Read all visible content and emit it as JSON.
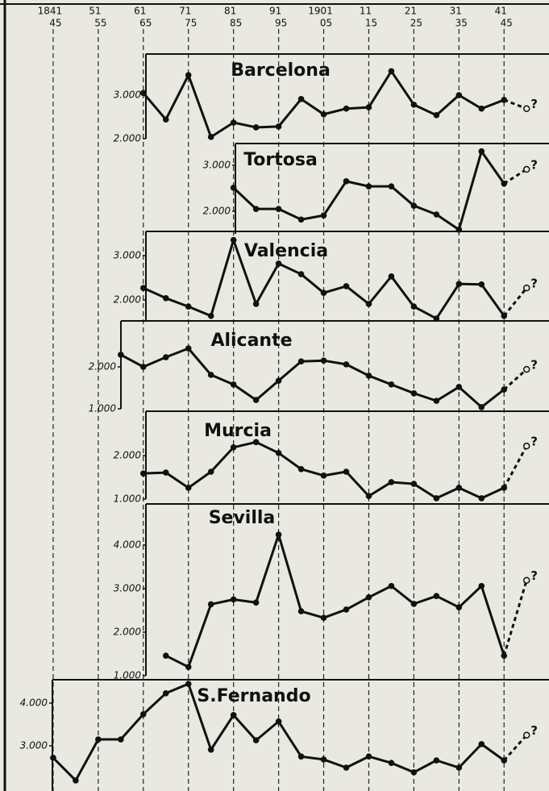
{
  "x_axis": {
    "xlim": [
      1835,
      1953
    ],
    "xticks": [
      {
        "value": 1845,
        "label": "1841"
      },
      {
        "value": 1855,
        "label": "51"
      },
      {
        "value": 1865,
        "label": "61"
      },
      {
        "value": 1875,
        "label": "71"
      },
      {
        "value": 1885,
        "label": "81"
      },
      {
        "value": 1895,
        "label": "91"
      },
      {
        "value": 1905,
        "label": "1901"
      },
      {
        "value": 1915,
        "label": "11"
      },
      {
        "value": 1925,
        "label": "21"
      },
      {
        "value": 1935,
        "label": "31"
      },
      {
        "value": 1945,
        "label": "41"
      }
    ],
    "xtick_sublabels": [
      "45",
      "55",
      "65",
      "75",
      "85",
      "95",
      "05",
      "15",
      "25",
      "35",
      "45"
    ],
    "grid": true,
    "grid_style": "dashed"
  },
  "chart_data": [
    {
      "type": "line",
      "title": "Barcelona",
      "color": "#111111",
      "end_label": "?",
      "dashed_last_segment": true,
      "x": [
        1865,
        1870,
        1875,
        1880,
        1885,
        1890,
        1895,
        1900,
        1905,
        1910,
        1915,
        1920,
        1925,
        1930,
        1935,
        1940,
        1945,
        1950
      ],
      "values": [
        3050,
        2440,
        3460,
        2040,
        2370,
        2260,
        2280,
        2910,
        2560,
        2690,
        2720,
        3550,
        2780,
        2540,
        3000,
        2690,
        2890,
        2690
      ],
      "ylim": [
        2000,
        3944
      ],
      "yticks": [
        {
          "value": 3000,
          "label": "3.000"
        },
        {
          "value": 2000,
          "label": "2.000"
        }
      ]
    },
    {
      "type": "line",
      "title": "Tortosa",
      "color": "#111111",
      "end_label": "?",
      "dashed_last_segment": true,
      "x": [
        1885,
        1890,
        1895,
        1900,
        1905,
        1910,
        1915,
        1920,
        1925,
        1930,
        1935,
        1940,
        1945,
        1950
      ],
      "values": [
        2510,
        2050,
        2050,
        1820,
        1910,
        2650,
        2540,
        2540,
        2120,
        1930,
        1600,
        3300,
        2600,
        2910
      ],
      "ylim": [
        1510,
        3470
      ],
      "yticks": [
        {
          "value": 3000,
          "label": "3.000"
        },
        {
          "value": 2000,
          "label": "2.000"
        }
      ]
    },
    {
      "type": "line",
      "title": "Valencia",
      "color": "#111111",
      "end_label": "?",
      "dashed_last_segment": true,
      "x": [
        1865,
        1870,
        1875,
        1880,
        1885,
        1890,
        1895,
        1900,
        1905,
        1910,
        1915,
        1920,
        1925,
        1930,
        1935,
        1940,
        1945,
        1950
      ],
      "values": [
        2270,
        2040,
        1850,
        1640,
        3350,
        1910,
        2820,
        2580,
        2160,
        2310,
        1910,
        2530,
        1850,
        1580,
        2360,
        2350,
        1640,
        2270
      ],
      "ylim": [
        1527,
        3545
      ],
      "yticks": [
        {
          "value": 3000,
          "label": "3.000"
        },
        {
          "value": 2000,
          "label": "2.000"
        }
      ]
    },
    {
      "type": "line",
      "title": "Alicante",
      "color": "#111111",
      "end_label": "?",
      "dashed_last_segment": true,
      "x": [
        1860,
        1865,
        1870,
        1875,
        1880,
        1885,
        1890,
        1895,
        1900,
        1905,
        1910,
        1915,
        1920,
        1925,
        1930,
        1935,
        1940,
        1945,
        1950
      ],
      "values": [
        2290,
        2000,
        2230,
        2440,
        1810,
        1580,
        1210,
        1670,
        2130,
        2150,
        2060,
        1790,
        1580,
        1370,
        1190,
        1520,
        1040,
        1460,
        1940
      ],
      "ylim": [
        1000,
        3096
      ],
      "yticks": [
        {
          "value": 2000,
          "label": "2.000"
        },
        {
          "value": 1000,
          "label": "1.000"
        }
      ]
    },
    {
      "type": "line",
      "title": "Murcia",
      "color": "#111111",
      "end_label": "?",
      "dashed_last_segment": true,
      "x": [
        1865,
        1870,
        1875,
        1880,
        1885,
        1890,
        1895,
        1900,
        1905,
        1910,
        1915,
        1920,
        1925,
        1930,
        1935,
        1940,
        1945,
        1950
      ],
      "values": [
        1590,
        1610,
        1260,
        1630,
        2190,
        2310,
        2060,
        1690,
        1540,
        1630,
        1070,
        1390,
        1350,
        1020,
        1260,
        1020,
        1260,
        2220
      ],
      "ylim": [
        1000,
        3020
      ],
      "yticks": [
        {
          "value": 2000,
          "label": "2.000"
        },
        {
          "value": 1000,
          "label": "1.000"
        }
      ]
    },
    {
      "type": "line",
      "title": "Sevilla",
      "color": "#111111",
      "end_label": "?",
      "dashed_last_segment": true,
      "x": [
        1870,
        1875,
        1880,
        1885,
        1890,
        1895,
        1900,
        1905,
        1910,
        1915,
        1920,
        1925,
        1930,
        1935,
        1940,
        1945,
        1950
      ],
      "values": [
        1460,
        1200,
        2640,
        2750,
        2680,
        4240,
        2480,
        2330,
        2520,
        2800,
        3060,
        2650,
        2830,
        2570,
        3060,
        1460,
        3190
      ],
      "ylim": [
        1000,
        4944
      ],
      "yticks": [
        {
          "value": 4000,
          "label": "4.000"
        },
        {
          "value": 3000,
          "label": "3.000"
        },
        {
          "value": 2000,
          "label": "2.000"
        },
        {
          "value": 1000,
          "label": "1.000"
        }
      ]
    },
    {
      "type": "line",
      "title": "S.Fernando",
      "color": "#111111",
      "end_label": "?",
      "dashed_last_segment": true,
      "x": [
        1845,
        1850,
        1855,
        1860,
        1865,
        1870,
        1875,
        1880,
        1885,
        1890,
        1895,
        1900,
        1905,
        1910,
        1915,
        1920,
        1925,
        1930,
        1935,
        1940,
        1945,
        1950
      ],
      "values": [
        2720,
        2190,
        3150,
        3150,
        3740,
        4230,
        4450,
        2910,
        3720,
        3130,
        3570,
        2750,
        2680,
        2490,
        2750,
        2600,
        2380,
        2660,
        2490,
        3040,
        2660,
        3250
      ],
      "ylim": [
        1943,
        4547
      ],
      "yticks": [
        {
          "value": 4000,
          "label": "4.000"
        },
        {
          "value": 3000,
          "label": "3.000"
        }
      ]
    }
  ]
}
